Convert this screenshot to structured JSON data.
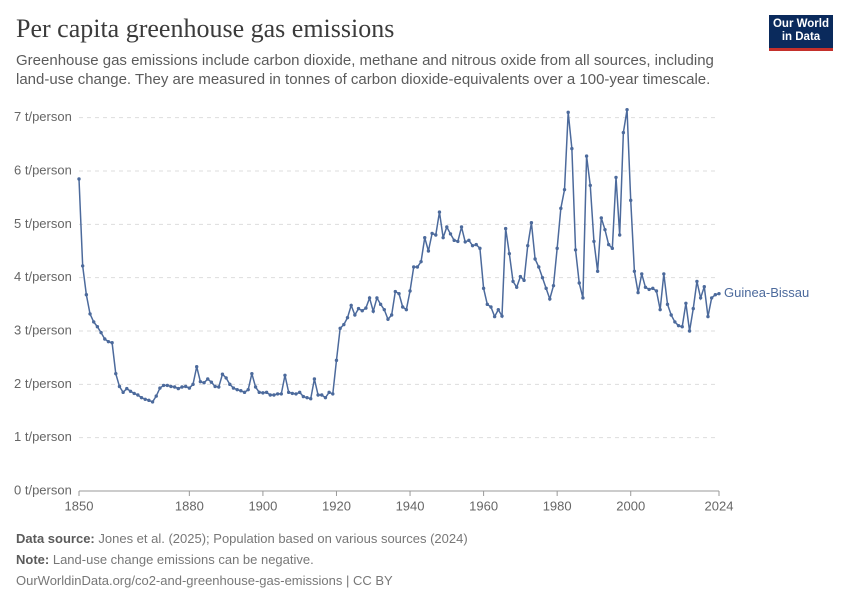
{
  "logo": "Our World in Data",
  "chart_data": {
    "type": "line",
    "title": "Per capita greenhouse gas emissions",
    "subtitle": "Greenhouse gas emissions include carbon dioxide, methane and nitrous oxide from all sources, including land-use change. They are measured in tonnes of carbon dioxide-equivalents over a 100-year timescale.",
    "x": [
      1850,
      1851,
      1852,
      1853,
      1854,
      1855,
      1856,
      1857,
      1858,
      1859,
      1860,
      1861,
      1862,
      1863,
      1864,
      1865,
      1866,
      1867,
      1868,
      1869,
      1870,
      1871,
      1872,
      1873,
      1874,
      1875,
      1876,
      1877,
      1878,
      1879,
      1880,
      1881,
      1882,
      1883,
      1884,
      1885,
      1886,
      1887,
      1888,
      1889,
      1890,
      1891,
      1892,
      1893,
      1894,
      1895,
      1896,
      1897,
      1898,
      1899,
      1900,
      1901,
      1902,
      1903,
      1904,
      1905,
      1906,
      1907,
      1908,
      1909,
      1910,
      1911,
      1912,
      1913,
      1914,
      1915,
      1916,
      1917,
      1918,
      1919,
      1920,
      1921,
      1922,
      1923,
      1924,
      1925,
      1926,
      1927,
      1928,
      1929,
      1930,
      1931,
      1932,
      1933,
      1934,
      1935,
      1936,
      1937,
      1938,
      1939,
      1940,
      1941,
      1942,
      1943,
      1944,
      1945,
      1946,
      1947,
      1948,
      1949,
      1950,
      1951,
      1952,
      1953,
      1954,
      1955,
      1956,
      1957,
      1958,
      1959,
      1960,
      1961,
      1962,
      1963,
      1964,
      1965,
      1966,
      1967,
      1968,
      1969,
      1970,
      1971,
      1972,
      1973,
      1974,
      1975,
      1976,
      1977,
      1978,
      1979,
      1980,
      1981,
      1982,
      1983,
      1984,
      1985,
      1986,
      1987,
      1988,
      1989,
      1990,
      1991,
      1992,
      1993,
      1994,
      1995,
      1996,
      1997,
      1998,
      1999,
      2000,
      2001,
      2002,
      2003,
      2004,
      2005,
      2006,
      2007,
      2008,
      2009,
      2010,
      2011,
      2012,
      2013,
      2014,
      2015,
      2016,
      2017,
      2018,
      2019,
      2020,
      2021,
      2022,
      2023,
      2024
    ],
    "series": [
      {
        "name": "Guinea-Bissau",
        "color": "#4c6a9c",
        "values": [
          5.85,
          4.22,
          3.68,
          3.32,
          3.17,
          3.08,
          2.97,
          2.85,
          2.8,
          2.78,
          2.2,
          1.96,
          1.85,
          1.92,
          1.87,
          1.83,
          1.8,
          1.75,
          1.72,
          1.7,
          1.67,
          1.78,
          1.93,
          1.98,
          1.98,
          1.96,
          1.95,
          1.92,
          1.95,
          1.96,
          1.93,
          2.0,
          2.33,
          2.05,
          2.03,
          2.1,
          2.04,
          1.96,
          1.95,
          2.19,
          2.12,
          2.0,
          1.93,
          1.9,
          1.88,
          1.85,
          1.9,
          2.2,
          1.95,
          1.85,
          1.84,
          1.85,
          1.8,
          1.8,
          1.82,
          1.82,
          2.17,
          1.85,
          1.83,
          1.82,
          1.85,
          1.77,
          1.75,
          1.73,
          2.1,
          1.8,
          1.8,
          1.75,
          1.85,
          1.82,
          2.45,
          3.05,
          3.12,
          3.25,
          3.48,
          3.3,
          3.42,
          3.38,
          3.43,
          3.62,
          3.37,
          3.62,
          3.5,
          3.4,
          3.22,
          3.3,
          3.74,
          3.7,
          3.45,
          3.4,
          3.75,
          4.2,
          4.2,
          4.3,
          4.75,
          4.5,
          4.83,
          4.8,
          5.23,
          4.75,
          4.95,
          4.82,
          4.7,
          4.68,
          4.95,
          4.67,
          4.7,
          4.6,
          4.62,
          4.55,
          3.8,
          3.5,
          3.45,
          3.27,
          3.4,
          3.28,
          4.92,
          4.45,
          3.93,
          3.82,
          4.02,
          3.95,
          4.6,
          5.03,
          4.35,
          4.2,
          4.0,
          3.8,
          3.6,
          3.85,
          4.55,
          5.3,
          5.65,
          7.1,
          6.42,
          4.52,
          3.9,
          3.62,
          6.28,
          5.73,
          4.68,
          4.12,
          5.12,
          4.9,
          4.62,
          4.55,
          5.88,
          4.8,
          6.72,
          7.15,
          5.45,
          4.12,
          3.72,
          4.07,
          3.82,
          3.78,
          3.8,
          3.75,
          3.4,
          4.07,
          3.5,
          3.3,
          3.17,
          3.1,
          3.08,
          3.52,
          3.0,
          3.42,
          3.93,
          3.62,
          3.83,
          3.27,
          3.62,
          3.68,
          3.7
        ]
      }
    ],
    "xlim": [
      1850,
      2024
    ],
    "xticks": [
      1850,
      1880,
      1900,
      1920,
      1940,
      1960,
      1980,
      2000,
      2024
    ],
    "ylim": [
      0,
      7.2
    ],
    "yticks": [
      {
        "value": 0,
        "label": "0 t/person"
      },
      {
        "value": 1,
        "label": "1 t/person"
      },
      {
        "value": 2,
        "label": "2 t/person"
      },
      {
        "value": 3,
        "label": "3 t/person"
      },
      {
        "value": 4,
        "label": "4 t/person"
      },
      {
        "value": 5,
        "label": "5 t/person"
      },
      {
        "value": 6,
        "label": "6 t/person"
      },
      {
        "value": 7,
        "label": "7 t/person"
      }
    ],
    "grid": true
  },
  "footer": {
    "source_label": "Data source:",
    "source": "Jones et al. (2025); Population based on various sources (2024)",
    "note_label": "Note:",
    "note": "Land-use change emissions can be negative.",
    "url": "OurWorldinData.org/co2-and-greenhouse-gas-emissions | CC BY"
  }
}
